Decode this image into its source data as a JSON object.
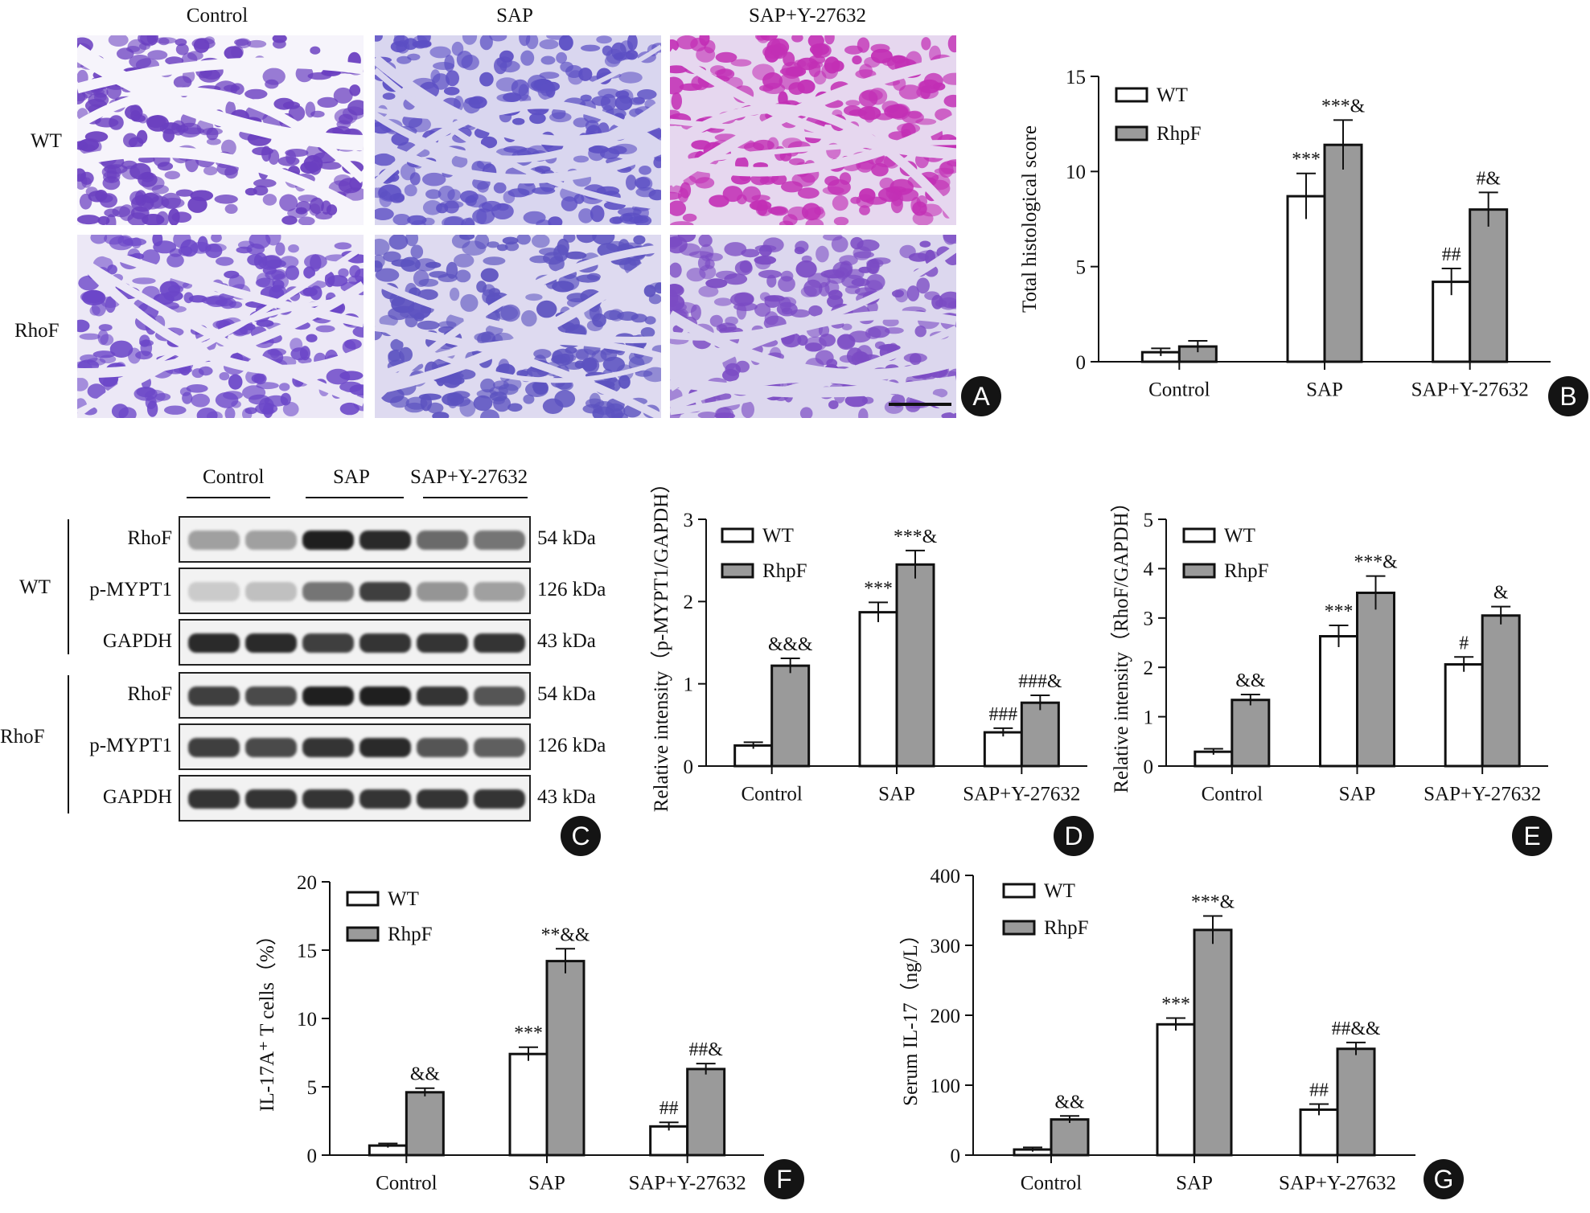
{
  "panel_letters": [
    "A",
    "B",
    "C",
    "D",
    "E",
    "F",
    "G"
  ],
  "histology": {
    "columns": [
      "Control",
      "SAP",
      "SAP+Y-27632"
    ],
    "rows": [
      "WT",
      "RhoF"
    ]
  },
  "blot": {
    "group_labels": [
      "Control",
      "SAP",
      "SAP+Y-27632"
    ],
    "sections": [
      {
        "name": "WT",
        "bands": [
          {
            "label": "RhoF",
            "kda": "54 kDa",
            "intensity": [
              0.35,
              0.35,
              0.95,
              0.9,
              0.6,
              0.55
            ]
          },
          {
            "label": "p-MYPT1",
            "kda": "126 kDa",
            "intensity": [
              0.15,
              0.2,
              0.55,
              0.8,
              0.4,
              0.35
            ]
          },
          {
            "label": "GAPDH",
            "kda": "43 kDa",
            "intensity": [
              0.9,
              0.9,
              0.8,
              0.85,
              0.85,
              0.85
            ]
          }
        ]
      },
      {
        "name": "RhoF",
        "bands": [
          {
            "label": "RhoF",
            "kda": "54 kDa",
            "intensity": [
              0.8,
              0.75,
              0.95,
              0.95,
              0.85,
              0.7
            ]
          },
          {
            "label": "p-MYPT1",
            "kda": "126 kDa",
            "intensity": [
              0.8,
              0.75,
              0.85,
              0.9,
              0.7,
              0.65
            ]
          },
          {
            "label": "GAPDH",
            "kda": "43 kDa",
            "intensity": [
              0.85,
              0.85,
              0.85,
              0.85,
              0.85,
              0.85
            ]
          }
        ]
      }
    ]
  },
  "chart_data": [
    {
      "panel": "B",
      "type": "bar",
      "categories": [
        "Control",
        "SAP",
        "SAP+Y-27632"
      ],
      "ylabel": "Total histological score",
      "ylim": [
        0,
        15
      ],
      "yticks": [
        0,
        5,
        10,
        15
      ],
      "legend_position": "top-left",
      "series": [
        {
          "name": "WT",
          "values": [
            0.5,
            8.7,
            4.2
          ],
          "errors": [
            0.2,
            1.2,
            0.7
          ],
          "annotations": [
            "",
            "***",
            "##"
          ]
        },
        {
          "name": "RhpF",
          "values": [
            0.8,
            11.4,
            8.0
          ],
          "errors": [
            0.3,
            1.3,
            0.9
          ],
          "annotations": [
            "",
            "***&",
            "#&"
          ]
        }
      ]
    },
    {
      "panel": "D",
      "type": "bar",
      "categories": [
        "Control",
        "SAP",
        "SAP+Y-27632"
      ],
      "ylabel": "Relative intensity（p-MYPT1/GAPDH）",
      "ylim": [
        0,
        3
      ],
      "yticks": [
        0,
        1,
        2,
        3
      ],
      "legend_position": "top-left",
      "series": [
        {
          "name": "WT",
          "values": [
            0.25,
            1.87,
            0.41
          ],
          "errors": [
            0.04,
            0.12,
            0.05
          ],
          "annotations": [
            "",
            "***",
            "###"
          ]
        },
        {
          "name": "RhpF",
          "values": [
            1.22,
            2.45,
            0.77
          ],
          "errors": [
            0.09,
            0.17,
            0.09
          ],
          "annotations": [
            "&&&",
            "***&",
            "###&"
          ]
        }
      ]
    },
    {
      "panel": "E",
      "type": "bar",
      "categories": [
        "Control",
        "SAP",
        "SAP+Y-27632"
      ],
      "ylabel": "Relative intensity（RhoF/GAPDH）",
      "ylim": [
        0,
        5
      ],
      "yticks": [
        0,
        1,
        2,
        3,
        4,
        5
      ],
      "legend_position": "top-left",
      "series": [
        {
          "name": "WT",
          "values": [
            0.29,
            2.63,
            2.06
          ],
          "errors": [
            0.06,
            0.22,
            0.15
          ],
          "annotations": [
            "",
            "***",
            "#"
          ]
        },
        {
          "name": "RhpF",
          "values": [
            1.34,
            3.51,
            3.05
          ],
          "errors": [
            0.11,
            0.34,
            0.18
          ],
          "annotations": [
            "&&",
            "***&",
            "&"
          ]
        }
      ]
    },
    {
      "panel": "F",
      "type": "bar",
      "categories": [
        "Control",
        "SAP",
        "SAP+Y-27632"
      ],
      "ylabel": "IL-17A⁺ T cells（%）",
      "ylim": [
        0,
        20
      ],
      "yticks": [
        0,
        5,
        10,
        15,
        20
      ],
      "legend_position": "top-left",
      "series": [
        {
          "name": "WT",
          "values": [
            0.7,
            7.4,
            2.1
          ],
          "errors": [
            0.15,
            0.5,
            0.3
          ],
          "annotations": [
            "",
            "***",
            "##"
          ]
        },
        {
          "name": "RhpF",
          "values": [
            4.6,
            14.2,
            6.3
          ],
          "errors": [
            0.3,
            0.9,
            0.4
          ],
          "annotations": [
            "&&",
            "**&&",
            "##&"
          ]
        }
      ]
    },
    {
      "panel": "G",
      "type": "bar",
      "categories": [
        "Control",
        "SAP",
        "SAP+Y-27632"
      ],
      "ylabel": "Serum IL-17（ng/L）",
      "ylim": [
        0,
        400
      ],
      "yticks": [
        0,
        100,
        200,
        300,
        400
      ],
      "legend_position": "top-left",
      "series": [
        {
          "name": "WT",
          "values": [
            8,
            187,
            65
          ],
          "errors": [
            3,
            9,
            8
          ],
          "annotations": [
            "",
            "***",
            "##"
          ]
        },
        {
          "name": "RhpF",
          "values": [
            51,
            322,
            152
          ],
          "errors": [
            5,
            20,
            9
          ],
          "annotations": [
            "&&",
            "***&",
            "##&&"
          ]
        }
      ]
    }
  ]
}
